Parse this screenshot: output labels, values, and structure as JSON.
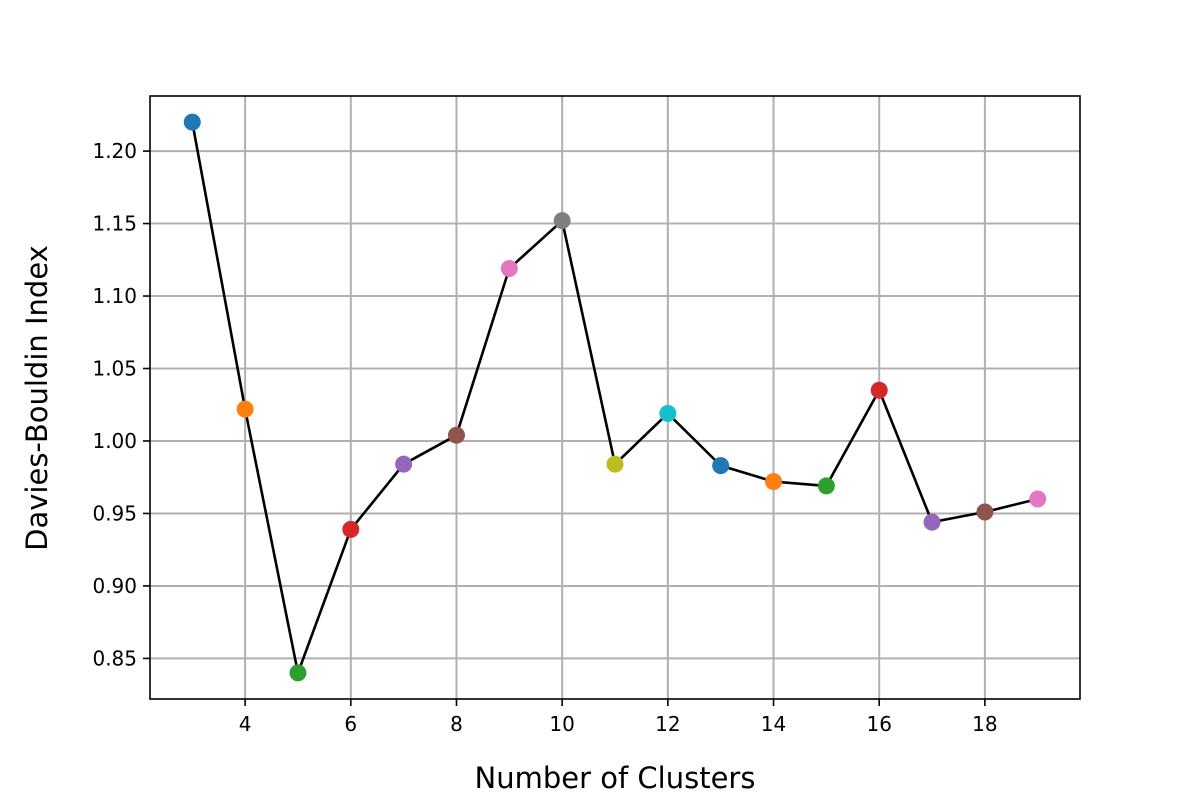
{
  "chart_data": {
    "type": "line",
    "title": "",
    "xlabel": "Number of Clusters",
    "ylabel": "Davies-Bouldin Index",
    "xlim": [
      2.2,
      19.8
    ],
    "ylim": [
      0.822,
      1.238
    ],
    "grid": true,
    "x_ticks": [
      4,
      6,
      8,
      10,
      12,
      14,
      16,
      18
    ],
    "y_ticks": [
      0.85,
      0.9,
      0.95,
      1.0,
      1.05,
      1.1,
      1.15,
      1.2
    ],
    "x_tick_labels": [
      "4",
      "6",
      "8",
      "10",
      "12",
      "14",
      "16",
      "18"
    ],
    "y_tick_labels": [
      "0.85",
      "0.90",
      "0.95",
      "1.00",
      "1.05",
      "1.10",
      "1.15",
      "1.20"
    ],
    "line_color": "#000000",
    "series": [
      {
        "name": "Davies-Bouldin Index",
        "x": [
          3,
          4,
          5,
          6,
          7,
          8,
          9,
          10,
          11,
          12,
          13,
          14,
          15,
          16,
          17,
          18,
          19
        ],
        "y": [
          1.22,
          1.022,
          0.84,
          0.939,
          0.984,
          1.004,
          1.119,
          1.152,
          0.984,
          1.019,
          0.983,
          0.972,
          0.969,
          1.035,
          0.944,
          0.951,
          0.96
        ],
        "marker_colors": [
          "#1f77b4",
          "#ff7f0e",
          "#2ca02c",
          "#d62728",
          "#9467bd",
          "#8c564b",
          "#e377c2",
          "#7f7f7f",
          "#bcbd22",
          "#17becf",
          "#1f77b4",
          "#ff7f0e",
          "#2ca02c",
          "#d62728",
          "#9467bd",
          "#8c564b",
          "#e377c2"
        ]
      }
    ]
  }
}
